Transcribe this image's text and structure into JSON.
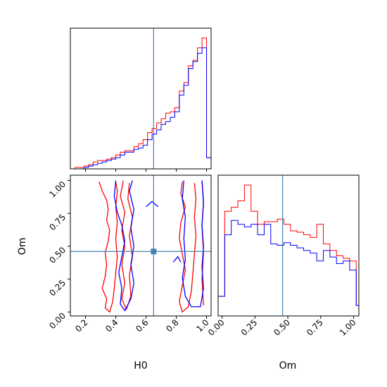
{
  "chart_data": {
    "type": "corner",
    "parameters": [
      "H0",
      "Om"
    ],
    "truth": {
      "H0": 0.65,
      "Om": 0.46
    },
    "truth_color": "#4682b4",
    "series_colors": [
      "#ff0000",
      "#0000ff"
    ],
    "h0_ticks": [
      "0.2",
      "0.4",
      "0.6",
      "0.8",
      "1.0"
    ],
    "om_ticks": [
      "0.00",
      "0.25",
      "0.50",
      "0.75",
      "1.00"
    ],
    "h0_range": [
      0.1,
      1.03
    ],
    "om_range": [
      -0.03,
      1.04
    ],
    "hist_h0": {
      "edges": [
        0.1,
        0.13,
        0.16,
        0.19,
        0.22,
        0.25,
        0.28,
        0.31,
        0.34,
        0.37,
        0.4,
        0.43,
        0.46,
        0.49,
        0.52,
        0.55,
        0.58,
        0.61,
        0.64,
        0.67,
        0.7,
        0.73,
        0.76,
        0.79,
        0.82,
        0.85,
        0.88,
        0.91,
        0.94,
        0.97,
        1.0,
        1.03
      ],
      "red": [
        0.0,
        0.01,
        0.01,
        0.02,
        0.03,
        0.05,
        0.06,
        0.06,
        0.07,
        0.08,
        0.1,
        0.12,
        0.13,
        0.13,
        0.16,
        0.18,
        0.21,
        0.26,
        0.29,
        0.33,
        0.36,
        0.4,
        0.41,
        0.44,
        0.56,
        0.62,
        0.74,
        0.78,
        0.87,
        0.94,
        0.08
      ],
      "blue": [
        0.0,
        0.0,
        0.0,
        0.01,
        0.02,
        0.03,
        0.04,
        0.05,
        0.06,
        0.07,
        0.08,
        0.1,
        0.12,
        0.12,
        0.14,
        0.15,
        0.17,
        0.21,
        0.25,
        0.28,
        0.32,
        0.34,
        0.37,
        0.41,
        0.53,
        0.6,
        0.72,
        0.77,
        0.83,
        0.87,
        0.08
      ]
    },
    "hist_om": {
      "edges": [
        -0.03,
        0.02,
        0.07,
        0.12,
        0.17,
        0.22,
        0.27,
        0.32,
        0.37,
        0.42,
        0.47,
        0.52,
        0.57,
        0.62,
        0.67,
        0.72,
        0.77,
        0.82,
        0.87,
        0.92,
        0.97,
        1.02,
        1.04
      ],
      "red": [
        0.15,
        0.8,
        0.83,
        0.88,
        1.0,
        0.8,
        0.7,
        0.72,
        0.72,
        0.74,
        0.7,
        0.65,
        0.64,
        0.62,
        0.6,
        0.7,
        0.55,
        0.5,
        0.46,
        0.44,
        0.42,
        0.08
      ],
      "blue": [
        0.15,
        0.62,
        0.73,
        0.7,
        0.68,
        0.7,
        0.62,
        0.7,
        0.55,
        0.54,
        0.56,
        0.54,
        0.52,
        0.5,
        0.48,
        0.42,
        0.5,
        0.45,
        0.4,
        0.42,
        0.35,
        0.08
      ]
    },
    "contours": {
      "red": [
        [
          [
            0.29,
            0.99
          ],
          [
            0.31,
            0.92
          ],
          [
            0.34,
            0.85
          ],
          [
            0.35,
            0.78
          ],
          [
            0.34,
            0.7
          ],
          [
            0.36,
            0.62
          ],
          [
            0.35,
            0.54
          ],
          [
            0.33,
            0.45
          ],
          [
            0.34,
            0.36
          ],
          [
            0.33,
            0.27
          ],
          [
            0.31,
            0.18
          ],
          [
            0.34,
            0.1
          ],
          [
            0.33,
            0.03
          ],
          [
            0.36,
            0.0
          ],
          [
            0.38,
            0.08
          ],
          [
            0.39,
            0.18
          ],
          [
            0.4,
            0.3
          ],
          [
            0.41,
            0.42
          ],
          [
            0.4,
            0.55
          ],
          [
            0.41,
            0.68
          ],
          [
            0.4,
            0.8
          ],
          [
            0.41,
            0.92
          ],
          [
            0.4,
            0.99
          ]
        ],
        [
          [
            0.45,
            1.0
          ],
          [
            0.43,
            0.88
          ],
          [
            0.46,
            0.76
          ],
          [
            0.44,
            0.62
          ],
          [
            0.46,
            0.5
          ],
          [
            0.44,
            0.36
          ],
          [
            0.46,
            0.22
          ],
          [
            0.44,
            0.1
          ],
          [
            0.47,
            0.02
          ],
          [
            0.5,
            0.12
          ],
          [
            0.49,
            0.28
          ],
          [
            0.51,
            0.42
          ],
          [
            0.49,
            0.58
          ],
          [
            0.51,
            0.72
          ],
          [
            0.48,
            0.86
          ],
          [
            0.49,
            0.98
          ]
        ],
        [
          [
            0.84,
            0.99
          ],
          [
            0.83,
            0.9
          ],
          [
            0.86,
            0.8
          ],
          [
            0.83,
            0.68
          ],
          [
            0.82,
            0.56
          ],
          [
            0.84,
            0.44
          ],
          [
            0.86,
            0.32
          ],
          [
            0.84,
            0.2
          ],
          [
            0.82,
            0.08
          ],
          [
            0.84,
            0.0
          ],
          [
            0.88,
            0.04
          ],
          [
            0.9,
            0.16
          ],
          [
            0.91,
            0.3
          ],
          [
            0.92,
            0.44
          ],
          [
            0.93,
            0.58
          ],
          [
            0.92,
            0.72
          ],
          [
            0.93,
            0.86
          ],
          [
            0.92,
            0.98
          ]
        ],
        [
          [
            0.97,
            1.0
          ],
          [
            0.98,
            0.85
          ],
          [
            0.97,
            0.65
          ],
          [
            0.98,
            0.45
          ],
          [
            0.97,
            0.25
          ],
          [
            0.98,
            0.05
          ]
        ]
      ],
      "blue": [
        [
          [
            0.4,
            1.0
          ],
          [
            0.39,
            0.88
          ],
          [
            0.41,
            0.76
          ],
          [
            0.44,
            0.66
          ],
          [
            0.46,
            0.54
          ],
          [
            0.44,
            0.42
          ],
          [
            0.42,
            0.3
          ],
          [
            0.44,
            0.18
          ],
          [
            0.43,
            0.06
          ],
          [
            0.46,
            0.01
          ],
          [
            0.5,
            0.1
          ],
          [
            0.52,
            0.22
          ],
          [
            0.5,
            0.36
          ],
          [
            0.52,
            0.5
          ],
          [
            0.5,
            0.64
          ],
          [
            0.52,
            0.78
          ],
          [
            0.49,
            0.92
          ],
          [
            0.51,
            1.0
          ]
        ],
        [
          [
            0.6,
            0.8
          ],
          [
            0.64,
            0.84
          ],
          [
            0.68,
            0.8
          ]
        ],
        [
          [
            0.78,
            0.38
          ],
          [
            0.81,
            0.42
          ],
          [
            0.83,
            0.38
          ]
        ],
        [
          [
            0.85,
            1.0
          ],
          [
            0.84,
            0.86
          ],
          [
            0.86,
            0.72
          ],
          [
            0.85,
            0.56
          ],
          [
            0.86,
            0.4
          ],
          [
            0.84,
            0.26
          ],
          [
            0.86,
            0.12
          ],
          [
            0.9,
            0.04
          ],
          [
            0.96,
            0.04
          ],
          [
            0.98,
            0.18
          ],
          [
            0.97,
            0.34
          ],
          [
            0.98,
            0.5
          ],
          [
            0.97,
            0.66
          ],
          [
            0.98,
            0.82
          ],
          [
            0.97,
            1.0
          ]
        ]
      ]
    },
    "xlabel_h0": "H0",
    "xlabel_om": "Om",
    "ylabel_om": "Om"
  }
}
